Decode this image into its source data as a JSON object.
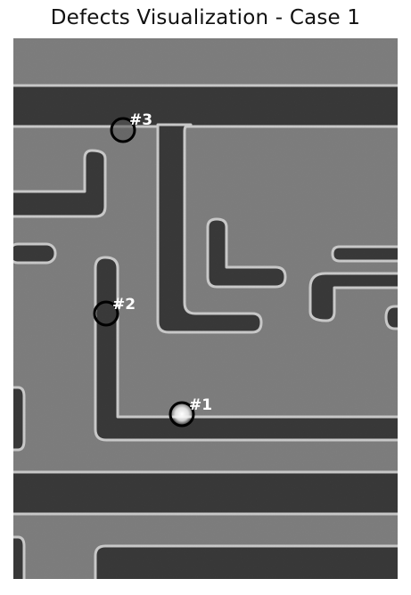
{
  "title": "Defects Visualization - Case 1",
  "defects": [
    {
      "label": "#1"
    },
    {
      "label": "#2"
    },
    {
      "label": "#3"
    }
  ],
  "colors": {
    "substrate": "#7d7d7d",
    "trench": "#2f2f2f",
    "edge_highlight": "#d6d6d6",
    "marker_ring": "#000000",
    "marker_text": "#ffffff"
  }
}
